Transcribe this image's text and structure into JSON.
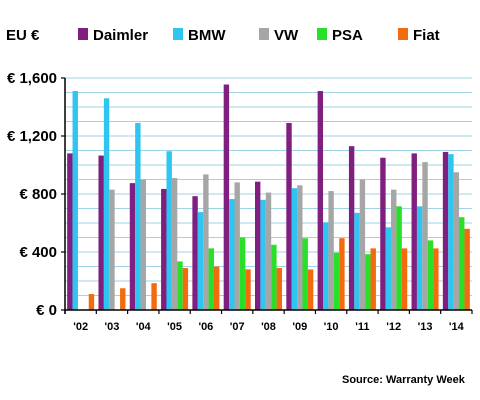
{
  "chart_data": {
    "type": "bar",
    "ylabel": "EU €",
    "source": "Source: Warranty Week",
    "categories": [
      "'02",
      "'03",
      "'04",
      "'05",
      "'06",
      "'07",
      "'08",
      "'09",
      "'10",
      "'11",
      "'12",
      "'13",
      "'14"
    ],
    "ylim": [
      0,
      1600
    ],
    "yticks": [
      0,
      400,
      800,
      1200,
      1600
    ],
    "ytick_labels": [
      "€ 0",
      "€ 400",
      "€ 800",
      "€ 1,200",
      "€ 1,600"
    ],
    "grid": true,
    "legend_position": "top",
    "series": [
      {
        "name": "Daimler",
        "color": "#7f1f7f",
        "values": [
          1080,
          1065,
          875,
          835,
          785,
          1555,
          885,
          1290,
          1510,
          1130,
          1050,
          1080,
          1090
        ]
      },
      {
        "name": "BMW",
        "color": "#2ec5f0",
        "values": [
          1510,
          1460,
          1290,
          1095,
          675,
          765,
          760,
          840,
          605,
          670,
          570,
          715,
          1075
        ]
      },
      {
        "name": "VW",
        "color": "#a6a6a6",
        "values": [
          null,
          830,
          900,
          910,
          935,
          880,
          810,
          860,
          820,
          900,
          830,
          1020,
          950
        ]
      },
      {
        "name": "PSA",
        "color": "#27e027",
        "values": [
          null,
          null,
          null,
          335,
          425,
          500,
          450,
          495,
          395,
          385,
          715,
          480,
          640
        ]
      },
      {
        "name": "Fiat",
        "color": "#f26b0f",
        "values": [
          110,
          150,
          185,
          290,
          300,
          280,
          290,
          280,
          495,
          425,
          425,
          425,
          560
        ]
      }
    ]
  }
}
